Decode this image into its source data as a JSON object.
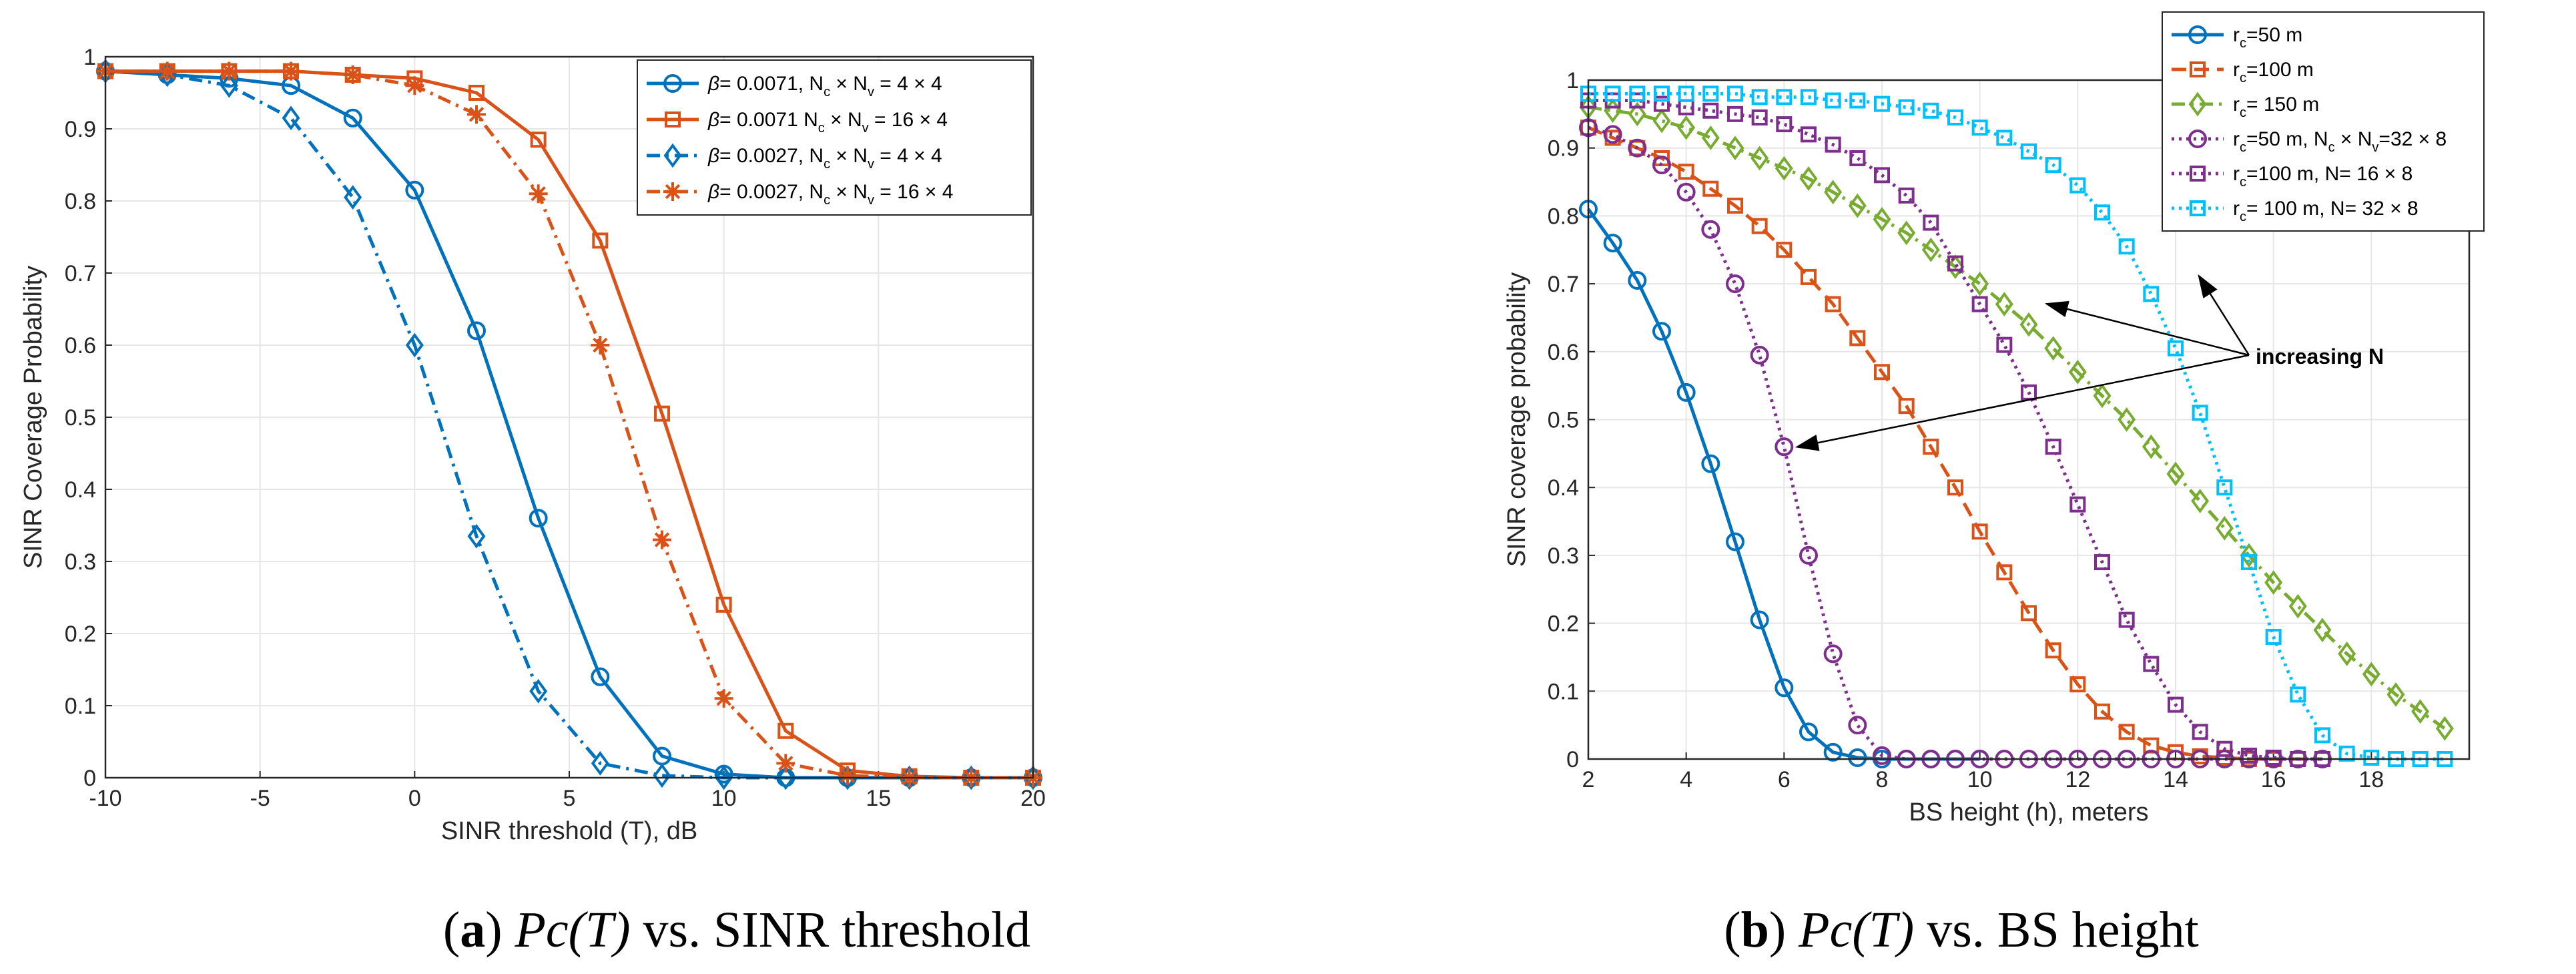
{
  "chart_data": [
    {
      "type": "line",
      "xlabel": "SINR threshold (T), dB",
      "ylabel": "SINR Coverage Probability",
      "xlim": [
        -10,
        20
      ],
      "ylim": [
        0,
        1
      ],
      "xticks": [
        "-10",
        "-5",
        "0",
        "5",
        "10",
        "15",
        "20"
      ],
      "yticks": [
        "0",
        "0.1",
        "0.2",
        "0.3",
        "0.4",
        "0.5",
        "0.6",
        "0.7",
        "0.8",
        "0.9",
        "1"
      ],
      "grid": true,
      "legend_position": "top-right",
      "series": [
        {
          "name": "β= 0.0071, Nc × Nv = 4 × 4",
          "legend": {
            "parts": [
              [
                "β",
                "i"
              ],
              [
                "= 0.0071, N",
                ""
              ],
              [
                "c",
                "sub"
              ],
              [
                " × N",
                ""
              ],
              [
                "v",
                "sub"
              ],
              [
                " = 4 × 4",
                ""
              ]
            ]
          },
          "color": "#0072BD",
          "dash": "solid",
          "marker": "circle",
          "x": [
            -10,
            -8,
            -6,
            -4,
            -2,
            0,
            2,
            4,
            6,
            8,
            10,
            12,
            14,
            16,
            18,
            20
          ],
          "values": [
            0.98,
            0.975,
            0.97,
            0.96,
            0.915,
            0.815,
            0.62,
            0.36,
            0.14,
            0.03,
            0.005,
            0.0,
            0.0,
            0.0,
            0.0,
            0.0
          ]
        },
        {
          "name": "β= 0.0071 Nc × Nv = 16 × 4",
          "legend": {
            "parts": [
              [
                "β",
                "i"
              ],
              [
                "= 0.0071 N",
                ""
              ],
              [
                "c",
                "sub"
              ],
              [
                " × N",
                ""
              ],
              [
                "v",
                "sub"
              ],
              [
                " = 16 × 4",
                ""
              ]
            ]
          },
          "color": "#D95319",
          "dash": "solid",
          "marker": "square",
          "x": [
            -10,
            -8,
            -6,
            -4,
            -2,
            0,
            2,
            4,
            6,
            8,
            10,
            12,
            14,
            16,
            18,
            20
          ],
          "values": [
            0.98,
            0.98,
            0.98,
            0.98,
            0.975,
            0.97,
            0.95,
            0.885,
            0.745,
            0.505,
            0.24,
            0.065,
            0.01,
            0.002,
            0.0,
            0.0
          ]
        },
        {
          "name": "β= 0.0027, Nc × Nv = 4 × 4",
          "legend": {
            "parts": [
              [
                "β",
                "i"
              ],
              [
                "= 0.0027, N",
                ""
              ],
              [
                "c",
                "sub"
              ],
              [
                " × N",
                ""
              ],
              [
                "v",
                "sub"
              ],
              [
                " = 4 × 4",
                ""
              ]
            ]
          },
          "color": "#0072BD",
          "dash": "dashdot",
          "marker": "diamond",
          "x": [
            -10,
            -8,
            -6,
            -4,
            -2,
            0,
            2,
            4,
            6,
            8,
            10,
            12,
            14,
            16,
            18,
            20
          ],
          "values": [
            0.98,
            0.975,
            0.96,
            0.915,
            0.805,
            0.6,
            0.335,
            0.12,
            0.02,
            0.003,
            0.0,
            0.0,
            0.0,
            0.0,
            0.0,
            0.0
          ]
        },
        {
          "name": "β= 0.0027, Nc × Nv = 16 × 4",
          "legend": {
            "parts": [
              [
                "β",
                "i"
              ],
              [
                "= 0.0027, N",
                ""
              ],
              [
                "c",
                "sub"
              ],
              [
                " × N",
                ""
              ],
              [
                "v",
                "sub"
              ],
              [
                " = 16 × 4",
                ""
              ]
            ]
          },
          "color": "#D95319",
          "dash": "dashdot",
          "marker": "asterisk",
          "x": [
            -10,
            -8,
            -6,
            -4,
            -2,
            0,
            2,
            4,
            6,
            8,
            10,
            12,
            14,
            16,
            18,
            20
          ],
          "values": [
            0.98,
            0.98,
            0.98,
            0.98,
            0.975,
            0.96,
            0.92,
            0.81,
            0.6,
            0.33,
            0.11,
            0.02,
            0.003,
            0.0,
            0.0,
            0.0
          ]
        }
      ],
      "annotations": []
    },
    {
      "type": "line",
      "xlabel": "BS height (h), meters",
      "ylabel": "SINR coverage probability",
      "xlim": [
        2,
        20
      ],
      "ylim": [
        0,
        1
      ],
      "xticks": [
        "2",
        "4",
        "6",
        "8",
        "10",
        "12",
        "14",
        "16",
        "18"
      ],
      "yticks": [
        "0",
        "0.1",
        "0.2",
        "0.3",
        "0.4",
        "0.5",
        "0.6",
        "0.7",
        "0.8",
        "0.9",
        "1"
      ],
      "grid": true,
      "legend_position": "top-right (outside)",
      "series": [
        {
          "name": "rc=50 m",
          "legend": {
            "parts": [
              [
                "r",
                ""
              ],
              [
                "c",
                "sub"
              ],
              [
                "=50 m",
                ""
              ]
            ]
          },
          "color": "#0072BD",
          "dash": "solid",
          "marker": "circle",
          "x": [
            2,
            2.5,
            3,
            3.5,
            4,
            4.5,
            5,
            5.5,
            6,
            6.5,
            7,
            7.5,
            8,
            8.5,
            9,
            9.5,
            10
          ],
          "values": [
            0.81,
            0.76,
            0.705,
            0.63,
            0.54,
            0.435,
            0.32,
            0.205,
            0.105,
            0.04,
            0.01,
            0.002,
            0.0,
            0.0,
            0.0,
            0.0,
            0.0
          ]
        },
        {
          "name": "rc=100 m",
          "legend": {
            "parts": [
              [
                "r",
                ""
              ],
              [
                "c",
                "sub"
              ],
              [
                "=100 m",
                ""
              ]
            ]
          },
          "color": "#D95319",
          "dash": "dashed",
          "marker": "square",
          "x": [
            2,
            2.5,
            3,
            3.5,
            4,
            4.5,
            5,
            5.5,
            6,
            6.5,
            7,
            7.5,
            8,
            8.5,
            9,
            9.5,
            10,
            10.5,
            11,
            11.5,
            12,
            12.5,
            13,
            13.5,
            14,
            14.5,
            15,
            15.5,
            16,
            16.5,
            17
          ],
          "values": [
            0.93,
            0.915,
            0.9,
            0.885,
            0.865,
            0.84,
            0.815,
            0.785,
            0.75,
            0.71,
            0.67,
            0.62,
            0.57,
            0.52,
            0.46,
            0.4,
            0.335,
            0.275,
            0.215,
            0.16,
            0.11,
            0.07,
            0.04,
            0.02,
            0.01,
            0.004,
            0.002,
            0.0,
            0.0,
            0.0,
            0.0
          ]
        },
        {
          "name": "rc= 150 m",
          "legend": {
            "parts": [
              [
                "r",
                ""
              ],
              [
                "c",
                "sub"
              ],
              [
                "= 150 m",
                ""
              ]
            ]
          },
          "color": "#77AC30",
          "dash": "dashdot",
          "marker": "diamond",
          "x": [
            2,
            2.5,
            3,
            3.5,
            4,
            4.5,
            5,
            5.5,
            6,
            6.5,
            7,
            7.5,
            8,
            8.5,
            9,
            9.5,
            10,
            10.5,
            11,
            11.5,
            12,
            12.5,
            13,
            13.5,
            14,
            14.5,
            15,
            15.5,
            16,
            16.5,
            17,
            17.5,
            18,
            18.5,
            19,
            19.5
          ],
          "values": [
            0.96,
            0.955,
            0.95,
            0.94,
            0.93,
            0.915,
            0.9,
            0.885,
            0.87,
            0.855,
            0.835,
            0.815,
            0.795,
            0.775,
            0.75,
            0.725,
            0.7,
            0.67,
            0.64,
            0.605,
            0.57,
            0.535,
            0.5,
            0.46,
            0.42,
            0.38,
            0.34,
            0.3,
            0.26,
            0.225,
            0.19,
            0.155,
            0.125,
            0.095,
            0.07,
            0.045
          ]
        },
        {
          "name": "rc=50 m, Nc × Nv=32 × 8",
          "legend": {
            "parts": [
              [
                "r",
                ""
              ],
              [
                "c",
                "sub"
              ],
              [
                "=50 m, N",
                ""
              ],
              [
                "c",
                "sub"
              ],
              [
                " × N",
                ""
              ],
              [
                "v",
                "sub"
              ],
              [
                "=32 × 8",
                ""
              ]
            ]
          },
          "color": "#7E2F8E",
          "dash": "dotted",
          "marker": "circle",
          "x": [
            2,
            2.5,
            3,
            3.5,
            4,
            4.5,
            5,
            5.5,
            6,
            6.5,
            7,
            7.5,
            8,
            8.5,
            9,
            9.5,
            10,
            10.5,
            11,
            11.5,
            12,
            12.5,
            13,
            13.5,
            14,
            14.5,
            15,
            15.5,
            16,
            16.5,
            17
          ],
          "values": [
            0.93,
            0.92,
            0.9,
            0.875,
            0.835,
            0.78,
            0.7,
            0.595,
            0.46,
            0.3,
            0.155,
            0.05,
            0.005,
            0.0,
            0.0,
            0.0,
            0.0,
            0.0,
            0.0,
            0.0,
            0.0,
            0.0,
            0.0,
            0.0,
            0.0,
            0.0,
            0.0,
            0.0,
            0.0,
            0.0,
            0.0
          ]
        },
        {
          "name": "rc=100 m, N= 16 × 8",
          "legend": {
            "parts": [
              [
                "r",
                ""
              ],
              [
                "c",
                "sub"
              ],
              [
                "=100 m, N= 16 × 8",
                ""
              ]
            ]
          },
          "color": "#7E2F8E",
          "dash": "dotted",
          "marker": "square",
          "x": [
            2,
            2.5,
            3,
            3.5,
            4,
            4.5,
            5,
            5.5,
            6,
            6.5,
            7,
            7.5,
            8,
            8.5,
            9,
            9.5,
            10,
            10.5,
            11,
            11.5,
            12,
            12.5,
            13,
            13.5,
            14,
            14.5,
            15,
            15.5,
            16,
            16.5,
            17
          ],
          "values": [
            0.97,
            0.97,
            0.97,
            0.965,
            0.96,
            0.955,
            0.95,
            0.945,
            0.935,
            0.92,
            0.905,
            0.885,
            0.86,
            0.83,
            0.79,
            0.73,
            0.67,
            0.61,
            0.54,
            0.46,
            0.375,
            0.29,
            0.205,
            0.14,
            0.08,
            0.04,
            0.015,
            0.005,
            0.002,
            0.0,
            0.0
          ]
        },
        {
          "name": "rc= 100 m, N= 32 × 8",
          "legend": {
            "parts": [
              [
                "r",
                ""
              ],
              [
                "c",
                "sub"
              ],
              [
                "= 100 m, N= 32 × 8",
                ""
              ]
            ]
          },
          "color": "#00BFFF",
          "dash": "dotted",
          "marker": "square",
          "x": [
            2,
            2.5,
            3,
            3.5,
            4,
            4.5,
            5,
            5.5,
            6,
            6.5,
            7,
            7.5,
            8,
            8.5,
            9,
            9.5,
            10,
            10.5,
            11,
            11.5,
            12,
            12.5,
            13,
            13.5,
            14,
            14.5,
            15,
            15.5,
            16,
            16.5,
            17,
            17.5,
            18,
            18.5,
            19,
            19.5
          ],
          "values": [
            0.98,
            0.98,
            0.98,
            0.98,
            0.98,
            0.98,
            0.98,
            0.975,
            0.975,
            0.975,
            0.97,
            0.97,
            0.965,
            0.96,
            0.955,
            0.945,
            0.93,
            0.915,
            0.895,
            0.875,
            0.845,
            0.805,
            0.755,
            0.685,
            0.605,
            0.51,
            0.4,
            0.29,
            0.18,
            0.095,
            0.035,
            0.008,
            0.002,
            0.0,
            0.0,
            0.0
          ]
        }
      ],
      "annotations": [
        {
          "text": "increasing N"
        }
      ]
    }
  ],
  "captions": [
    {
      "label": "a",
      "math": "Pc(T)",
      "text": " vs. SINR threshold"
    },
    {
      "label": "b",
      "math": "Pc(T)",
      "text": " vs. BS height"
    }
  ]
}
